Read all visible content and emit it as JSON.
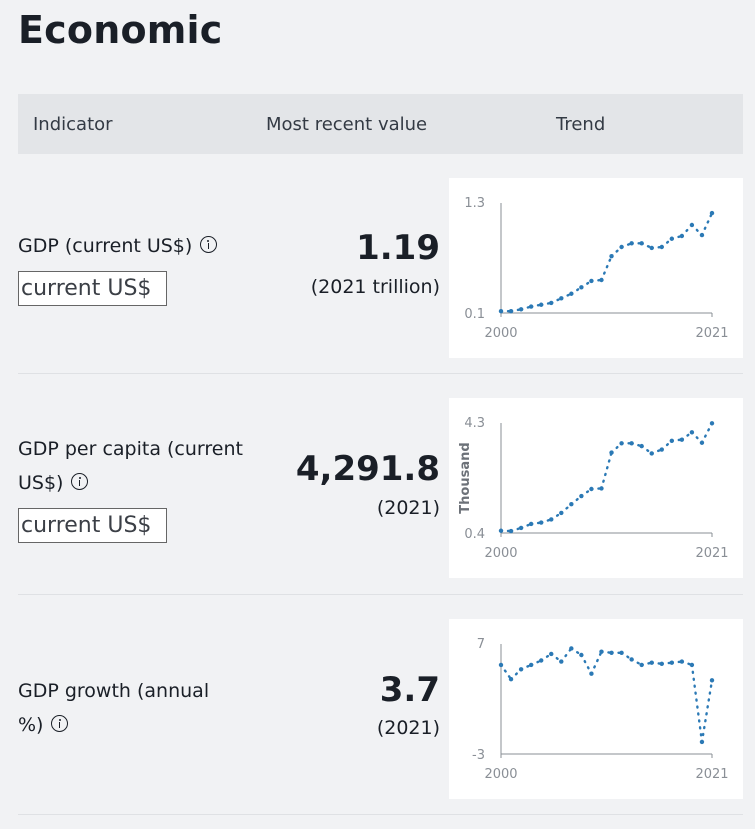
{
  "section_title": "Economic",
  "table_header": {
    "indicator": "Indicator",
    "recent": "Most recent value",
    "trend": "Trend"
  },
  "rows": [
    {
      "label": "GDP (current US$)",
      "unit_box": "current US$",
      "value": "1.19",
      "sub": "(2021 trillion)"
    },
    {
      "label_line1": "GDP per capita (current",
      "label_line2": "US$)",
      "unit_box": "current US$",
      "value": "4,291.8",
      "sub": "(2021)"
    },
    {
      "label_line1": "GDP growth (annual",
      "label_line2": "%)",
      "value": "3.7",
      "sub": "(2021)"
    }
  ],
  "accent_color": "#2b79b5",
  "chart_data": [
    {
      "type": "line",
      "x_start": "2000",
      "x_end": "2021",
      "ymin_label": "0.1",
      "ymax_label": "1.3",
      "ylabel": "",
      "ylim": [
        0.1,
        1.3
      ],
      "x": [
        2000,
        2001,
        2002,
        2003,
        2004,
        2005,
        2006,
        2007,
        2008,
        2009,
        2010,
        2011,
        2012,
        2013,
        2014,
        2015,
        2016,
        2017,
        2018,
        2019,
        2020,
        2021
      ],
      "values": [
        0.12,
        0.12,
        0.14,
        0.17,
        0.19,
        0.21,
        0.26,
        0.31,
        0.38,
        0.45,
        0.46,
        0.72,
        0.82,
        0.86,
        0.86,
        0.81,
        0.82,
        0.91,
        0.94,
        1.06,
        0.95,
        1.19
      ]
    },
    {
      "type": "line",
      "x_start": "2000",
      "x_end": "2021",
      "ymin_label": "0.4",
      "ymax_label": "4.3",
      "ylabel": "Thousand",
      "ylim": [
        0.4,
        4.3
      ],
      "x": [
        2000,
        2001,
        2002,
        2003,
        2004,
        2005,
        2006,
        2007,
        2008,
        2009,
        2010,
        2011,
        2012,
        2013,
        2014,
        2015,
        2016,
        2017,
        2018,
        2019,
        2020,
        2021
      ],
      "values": [
        0.48,
        0.47,
        0.58,
        0.72,
        0.77,
        0.88,
        1.11,
        1.42,
        1.71,
        1.96,
        1.98,
        3.25,
        3.58,
        3.58,
        3.48,
        3.22,
        3.36,
        3.67,
        3.71,
        3.97,
        3.6,
        4.29
      ]
    },
    {
      "type": "line",
      "x_start": "2000",
      "x_end": "2021",
      "ymin_label": "-3",
      "ymax_label": "7",
      "ylabel": "",
      "ylim": [
        -3,
        7
      ],
      "x": [
        2000,
        2001,
        2002,
        2003,
        2004,
        2005,
        2006,
        2007,
        2008,
        2009,
        2010,
        2011,
        2012,
        2013,
        2014,
        2015,
        2016,
        2017,
        2018,
        2019,
        2020,
        2021
      ],
      "values": [
        5.1,
        3.8,
        4.7,
        5.1,
        5.5,
        6.1,
        5.4,
        6.6,
        6,
        4.3,
        6.3,
        6.2,
        6.2,
        5.6,
        5.1,
        5.3,
        5.2,
        5.3,
        5.4,
        5.1,
        -1.9,
        3.7
      ]
    }
  ]
}
